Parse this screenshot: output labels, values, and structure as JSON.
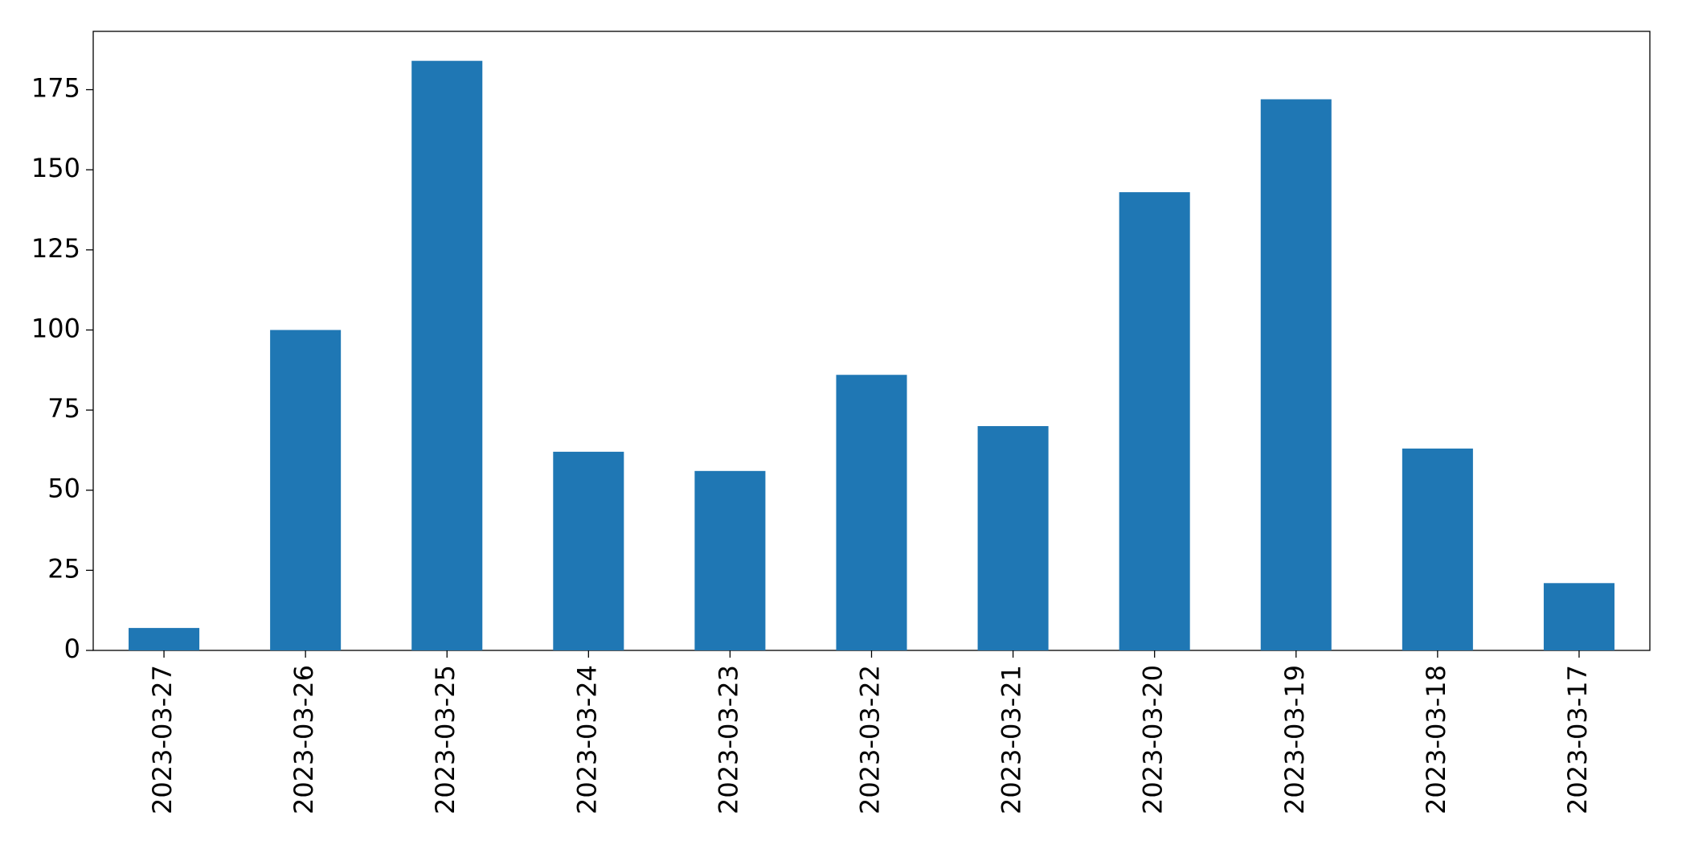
{
  "chart_data": {
    "type": "bar",
    "categories": [
      "2023-03-27",
      "2023-03-26",
      "2023-03-25",
      "2023-03-24",
      "2023-03-23",
      "2023-03-22",
      "2023-03-21",
      "2023-03-20",
      "2023-03-19",
      "2023-03-18",
      "2023-03-17"
    ],
    "values": [
      7,
      100,
      184,
      62,
      56,
      86,
      70,
      143,
      172,
      63,
      21
    ],
    "color": "#1f77b4",
    "ylim": [
      0,
      193.2
    ],
    "yticks": [
      0,
      25,
      50,
      75,
      100,
      125,
      150,
      175
    ],
    "grid": false
  }
}
